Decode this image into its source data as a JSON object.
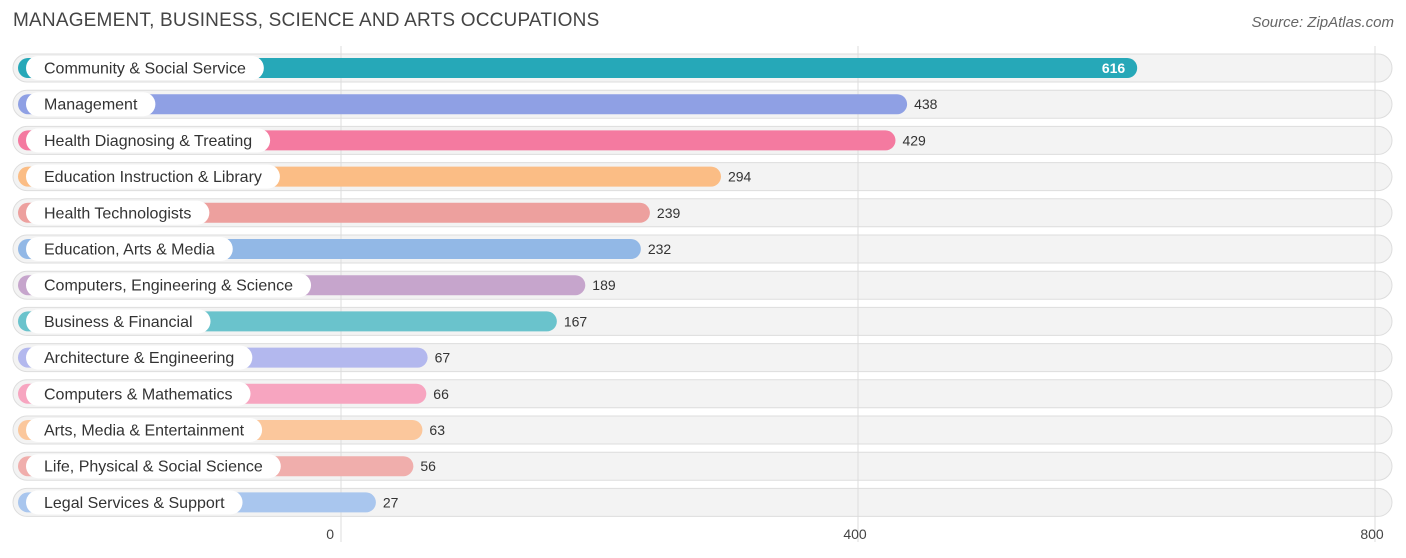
{
  "header": {
    "title": "MANAGEMENT, BUSINESS, SCIENCE AND ARTS OCCUPATIONS",
    "source": "Source: ZipAtlas.com"
  },
  "chart_data": {
    "type": "bar",
    "orientation": "horizontal",
    "title": "MANAGEMENT, BUSINESS, SCIENCE AND ARTS OCCUPATIONS",
    "xlabel": "",
    "ylabel": "",
    "xlim": [
      0,
      800
    ],
    "x_ticks": [
      {
        "value": 0,
        "label": "0"
      },
      {
        "value": 400,
        "label": "400"
      },
      {
        "value": 800,
        "label": "800"
      }
    ],
    "grid": true,
    "categories": [
      "Community & Social Service",
      "Management",
      "Health Diagnosing & Treating",
      "Education Instruction & Library",
      "Health Technologists",
      "Education, Arts & Media",
      "Computers, Engineering & Science",
      "Business & Financial",
      "Architecture & Engineering",
      "Computers & Mathematics",
      "Arts, Media & Entertainment",
      "Life, Physical & Social Science",
      "Legal Services & Support"
    ],
    "values": [
      616,
      438,
      429,
      294,
      239,
      232,
      189,
      167,
      67,
      66,
      63,
      56,
      27
    ],
    "value_labels": [
      "616",
      "438",
      "429",
      "294",
      "239",
      "232",
      "189",
      "167",
      "67",
      "66",
      "63",
      "56",
      "27"
    ],
    "colors": [
      "#26a8b8",
      "#8fa0e4",
      "#f47aa0",
      "#fbbd85",
      "#eda09e",
      "#92b8e6",
      "#c6a5cc",
      "#6ac3cc",
      "#b3b8ee",
      "#f7a5c0",
      "#fbc79c",
      "#f0aeac",
      "#a9c6ee"
    ]
  }
}
